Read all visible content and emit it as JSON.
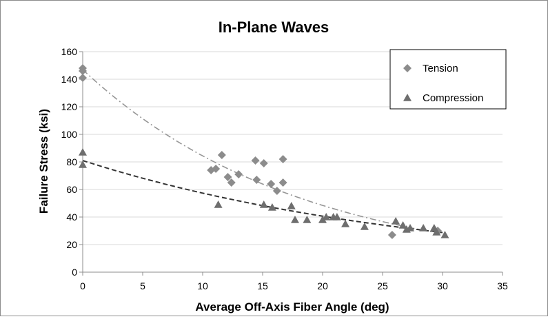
{
  "chart_data": {
    "type": "scatter",
    "title": "In-Plane Waves",
    "xlabel": "Average Off-Axis Fiber Angle (deg)",
    "ylabel": "Failure Stress (ksi)",
    "xlim": [
      0,
      35
    ],
    "ylim": [
      0,
      160
    ],
    "xticks": [
      0,
      5,
      10,
      15,
      20,
      25,
      30,
      35
    ],
    "yticks": [
      0,
      20,
      40,
      60,
      80,
      100,
      120,
      140,
      160
    ],
    "grid": "horizontal",
    "legend_position": "top-right",
    "series": [
      {
        "name": "Tension",
        "marker": "diamond",
        "color": "#8c8c8c",
        "points": [
          [
            0,
            148
          ],
          [
            0,
            146
          ],
          [
            0,
            141
          ],
          [
            10.7,
            74
          ],
          [
            11.1,
            75
          ],
          [
            11.6,
            85
          ],
          [
            12.1,
            69
          ],
          [
            12.4,
            65
          ],
          [
            13.0,
            71
          ],
          [
            14.4,
            81
          ],
          [
            14.5,
            67
          ],
          [
            15.1,
            79
          ],
          [
            15.7,
            64
          ],
          [
            16.2,
            59
          ],
          [
            16.7,
            65
          ],
          [
            16.7,
            82
          ],
          [
            25.8,
            27
          ],
          [
            29.6,
            30
          ]
        ]
      },
      {
        "name": "Compression",
        "marker": "triangle",
        "color": "#6e6e6e",
        "points": [
          [
            0,
            87
          ],
          [
            0,
            78
          ],
          [
            11.3,
            49
          ],
          [
            15.1,
            49
          ],
          [
            15.8,
            47
          ],
          [
            17.4,
            48
          ],
          [
            17.7,
            38
          ],
          [
            18.7,
            38
          ],
          [
            20.0,
            38
          ],
          [
            20.3,
            40
          ],
          [
            20.9,
            40
          ],
          [
            21.2,
            40
          ],
          [
            21.9,
            35
          ],
          [
            23.5,
            33
          ],
          [
            26.1,
            37
          ],
          [
            26.7,
            34
          ],
          [
            27.0,
            31
          ],
          [
            27.3,
            32
          ],
          [
            28.4,
            32
          ],
          [
            29.3,
            32
          ],
          [
            29.5,
            29
          ],
          [
            30.2,
            27
          ]
        ]
      }
    ],
    "trendlines": [
      {
        "series": "Tension",
        "style": "dash-dot",
        "color": "#969696",
        "fit": "exponential",
        "a": 147,
        "b": -0.0555,
        "x_range": [
          0,
          30
        ]
      },
      {
        "series": "Compression",
        "style": "dashed",
        "color": "#333333",
        "fit": "exponential",
        "a": 81,
        "b": -0.0345,
        "x_range": [
          0,
          30
        ]
      }
    ]
  }
}
